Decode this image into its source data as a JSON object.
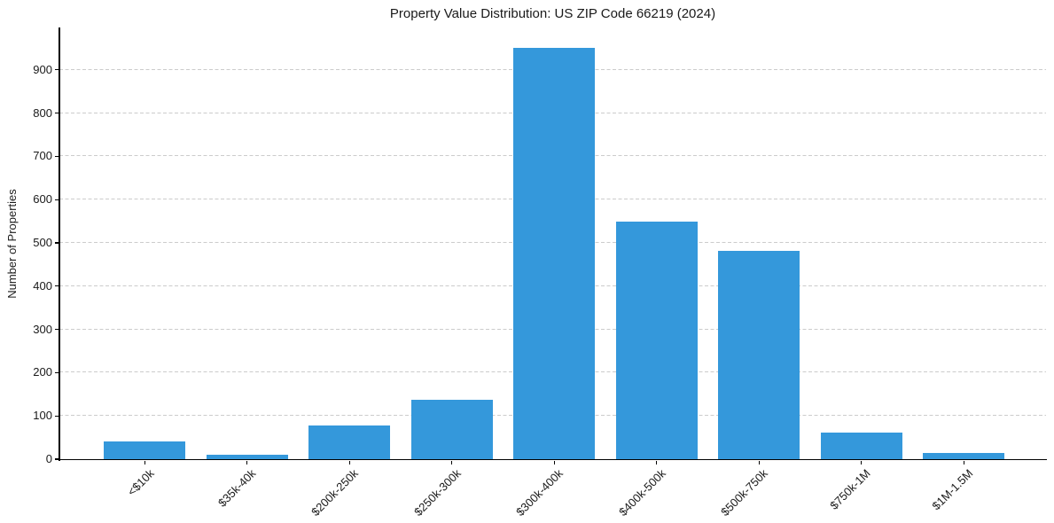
{
  "chart_data": {
    "type": "bar",
    "title": "Property Value Distribution: US ZIP Code 66219 (2024)",
    "xlabel": "",
    "ylabel": "Number of Properties",
    "categories": [
      "<$10k",
      "$35k-40k",
      "$200k-250k",
      "$250k-300k",
      "$300k-400k",
      "$400k-500k",
      "$500k-750k",
      "$750k-1M",
      "$1M-1.5M"
    ],
    "values": [
      41,
      11,
      77,
      137,
      950,
      550,
      482,
      62,
      15
    ],
    "yticks": [
      0,
      100,
      200,
      300,
      400,
      500,
      600,
      700,
      800,
      900
    ],
    "ylim": [
      0,
      998
    ],
    "grid": "horizontal, dashed, light gray",
    "legend_position": "none",
    "bar_color": "#3498db",
    "grid_color": "#cccccc",
    "spine_color": "#000000",
    "text_color": "#1a1a1a"
  }
}
